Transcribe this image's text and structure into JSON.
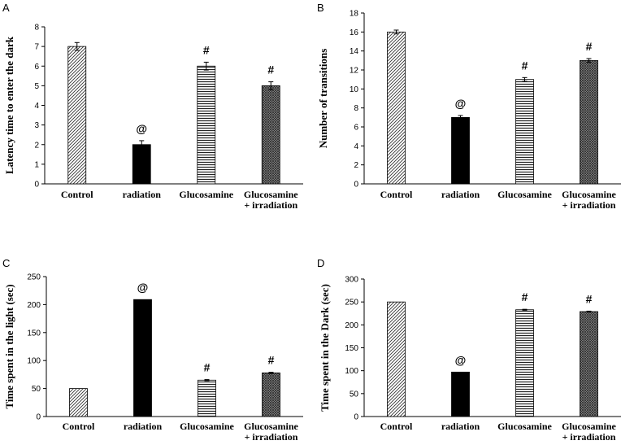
{
  "chart_data": [
    {
      "panel": "A",
      "type": "bar",
      "ylabel": "Latency time to enter the dark",
      "categories": [
        "Control",
        "radiation",
        "Glucosamine",
        "Glucosamine + irradiation"
      ],
      "category_lines": [
        [
          "Control"
        ],
        [
          "radiation"
        ],
        [
          "Glucosamine"
        ],
        [
          "Glucosamine",
          "+ irradiation"
        ]
      ],
      "values": [
        7,
        2,
        6,
        5
      ],
      "errors": [
        0.2,
        0.2,
        0.2,
        0.2
      ],
      "annotations": [
        "",
        "@",
        "#",
        "#"
      ],
      "ylim": [
        0,
        8
      ],
      "yticks": [
        0,
        1,
        2,
        3,
        4,
        5,
        6,
        7,
        8
      ],
      "patterns": [
        "diag",
        "solid",
        "hlines",
        "cross"
      ]
    },
    {
      "panel": "B",
      "type": "bar",
      "ylabel": "Number of  transitions",
      "categories": [
        "Control",
        "radiation",
        "Glucosamine",
        "Glucosamine + irradiation"
      ],
      "category_lines": [
        [
          "Control"
        ],
        [
          "radiation"
        ],
        [
          "Glucosamine"
        ],
        [
          "Glucosamine",
          "+ irradiation"
        ]
      ],
      "values": [
        16,
        7,
        11,
        13
      ],
      "errors": [
        0.2,
        0.2,
        0.2,
        0.2
      ],
      "annotations": [
        "",
        "@",
        "#",
        "#"
      ],
      "ylim": [
        0,
        18
      ],
      "yticks": [
        0,
        2,
        4,
        6,
        8,
        10,
        12,
        14,
        16,
        18
      ],
      "patterns": [
        "diag",
        "solid",
        "hlines",
        "cross"
      ]
    },
    {
      "panel": "C",
      "type": "bar",
      "ylabel": "Time spent in the light (sec)",
      "categories": [
        "Control",
        "radiation",
        "Glucosamine",
        "Glucosamine + irradiation"
      ],
      "category_lines": [
        [
          "Control"
        ],
        [
          "radiation"
        ],
        [
          "Glucosamine"
        ],
        [
          "Glucosamine",
          "+ irradiation"
        ]
      ],
      "values": [
        50,
        209,
        65,
        78
      ],
      "errors": [
        0,
        0,
        1,
        1
      ],
      "annotations": [
        "",
        "@",
        "#",
        "#"
      ],
      "ylim": [
        0,
        250
      ],
      "yticks": [
        0,
        50,
        100,
        150,
        200,
        250
      ],
      "patterns": [
        "diag",
        "solid",
        "hlines",
        "cross"
      ]
    },
    {
      "panel": "D",
      "type": "bar",
      "ylabel": "Time spent in the Dark (sec)",
      "categories": [
        "Control",
        "radiation",
        "Glucosamine",
        "Glucosamine + irradiation"
      ],
      "category_lines": [
        [
          "Control"
        ],
        [
          "radiation"
        ],
        [
          "Glucosamine"
        ],
        [
          "Glucosamine",
          "+ irradiation"
        ]
      ],
      "values": [
        250,
        97,
        233,
        229
      ],
      "errors": [
        0,
        0,
        1,
        1
      ],
      "annotations": [
        "",
        "@",
        "#",
        "#"
      ],
      "ylim": [
        0,
        300
      ],
      "yticks": [
        0,
        50,
        100,
        150,
        200,
        250,
        300
      ],
      "patterns": [
        "diag",
        "solid",
        "hlines",
        "cross"
      ]
    }
  ]
}
